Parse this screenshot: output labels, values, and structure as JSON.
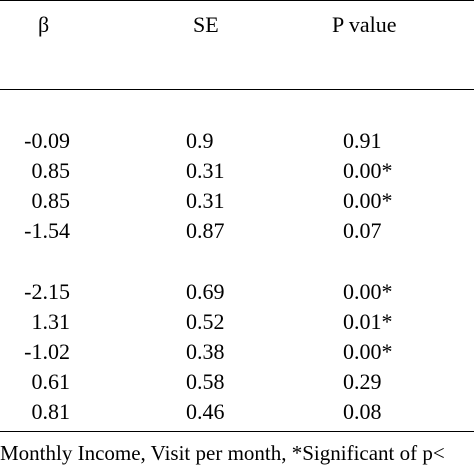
{
  "table": {
    "headers": {
      "beta": "β",
      "se": "SE",
      "p_value": "P value"
    },
    "group1": [
      {
        "beta": "-0.09",
        "se": "0.9",
        "p": "0.91"
      },
      {
        "beta": "0.85",
        "se": "0.31",
        "p": "0.00*"
      },
      {
        "beta": "0.85",
        "se": "0.31",
        "p": "0.00*"
      },
      {
        "beta": "-1.54",
        "se": "0.87",
        "p": "0.07"
      }
    ],
    "group2": [
      {
        "beta": "-2.15",
        "se": "0.69",
        "p": "0.00*"
      },
      {
        "beta": "1.31",
        "se": "0.52",
        "p": "0.01*"
      },
      {
        "beta": "-1.02",
        "se": "0.38",
        "p": "0.00*"
      },
      {
        "beta": "0.61",
        "se": "0.58",
        "p": "0.29"
      },
      {
        "beta": "0.81",
        "se": "0.46",
        "p": "0.08"
      }
    ],
    "footnote": "Monthly Income, Visit per month, *Significant of p<"
  }
}
